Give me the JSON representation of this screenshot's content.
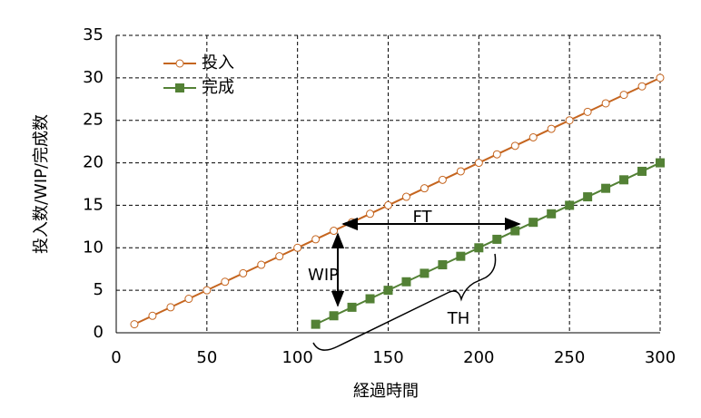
{
  "chart_data": {
    "type": "line",
    "xlabel": "経過時間",
    "ylabel": "投入数/WIP/完成数",
    "xlim": [
      0,
      300
    ],
    "xticks": [
      0,
      50,
      100,
      150,
      200,
      250,
      300
    ],
    "ylim": [
      0,
      35
    ],
    "yticks": [
      0,
      5,
      10,
      15,
      20,
      25,
      30,
      35
    ],
    "grid": true,
    "legend": "upper left",
    "series": [
      {
        "name": "投入",
        "color": "#c5651f",
        "marker": "circle",
        "x": [
          10,
          20,
          30,
          40,
          50,
          60,
          70,
          80,
          90,
          100,
          110,
          120,
          130,
          140,
          150,
          160,
          170,
          180,
          190,
          200,
          210,
          220,
          230,
          240,
          250,
          260,
          270,
          280,
          290,
          300
        ],
        "values": [
          1,
          2,
          3,
          4,
          5,
          6,
          7,
          8,
          9,
          10,
          11,
          12,
          13,
          14,
          15,
          16,
          17,
          18,
          19,
          20,
          21,
          22,
          23,
          24,
          25,
          26,
          27,
          28,
          29,
          30
        ]
      },
      {
        "name": "完成",
        "color": "#538135",
        "marker": "square",
        "x": [
          110,
          120,
          130,
          140,
          150,
          160,
          170,
          180,
          190,
          200,
          210,
          220,
          230,
          240,
          250,
          260,
          270,
          280,
          290,
          300
        ],
        "values": [
          1,
          2,
          3,
          4,
          5,
          6,
          7,
          8,
          9,
          10,
          11,
          12,
          13,
          14,
          15,
          16,
          17,
          18,
          19,
          20
        ]
      }
    ],
    "annotations": [
      "FT",
      "WIP",
      "TH"
    ]
  }
}
